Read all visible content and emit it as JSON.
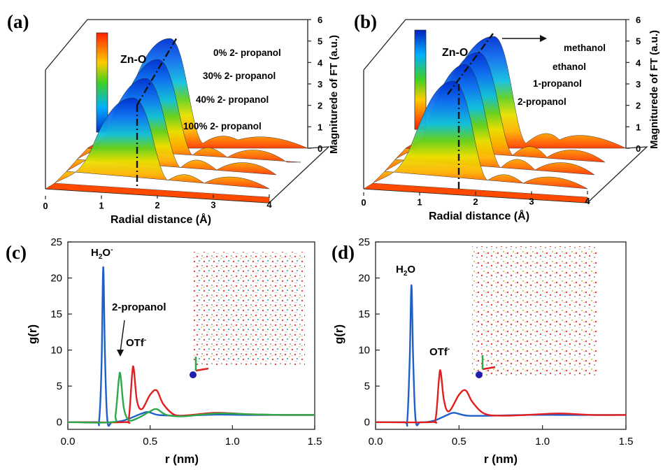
{
  "panel_labels": [
    "(a)",
    "(b)",
    "(c)",
    "(d)"
  ],
  "colors": {
    "blue": "#1f5fc8",
    "red": "#e02020",
    "green": "#2ea84a"
  },
  "chart_data": [
    {
      "panel": "(a)",
      "type": "area",
      "style": "3d-waterfall",
      "xlabel": "Radial distance (Å)",
      "ylabel": "Magniturede of FT (a.u.)",
      "xlim": [
        0,
        4
      ],
      "ylim": [
        0,
        6
      ],
      "xticks": [
        "0",
        "1",
        "2",
        "3",
        "4"
      ],
      "yticks": [
        "0",
        "1",
        "2",
        "3",
        "4",
        "5",
        "6"
      ],
      "annotation": "Zn-O",
      "series": [
        {
          "name": "100% 2- propanol",
          "peak_position": 1.62,
          "peak_height": 2.8
        },
        {
          "name": "40% 2- propanol",
          "peak_position": 1.62,
          "peak_height": 3.5
        },
        {
          "name": "30% 2- propanol",
          "peak_position": 1.62,
          "peak_height": 4.3
        },
        {
          "name": "0% 2- propanol",
          "peak_position": 1.62,
          "peak_height": 5.0
        }
      ]
    },
    {
      "panel": "(b)",
      "type": "area",
      "style": "3d-waterfall",
      "xlabel": "Radial distance (Å)",
      "ylabel": "Magniturede of FT (a.u.)",
      "xlim": [
        0,
        4
      ],
      "ylim": [
        0,
        6
      ],
      "xticks": [
        "0",
        "1",
        "2",
        "3",
        "4"
      ],
      "yticks": [
        "0",
        "1",
        "2",
        "3",
        "4",
        "5",
        "6"
      ],
      "annotation": "Zn-O",
      "series": [
        {
          "name": "2-propanol",
          "peak_position": 1.62,
          "peak_height": 3.0
        },
        {
          "name": "1-propanol",
          "peak_position": 1.62,
          "peak_height": 4.0
        },
        {
          "name": "ethanol",
          "peak_position": 1.62,
          "peak_height": 4.5
        },
        {
          "name": "methanol",
          "peak_position": 1.62,
          "peak_height": 5.1
        }
      ]
    },
    {
      "panel": "(c)",
      "type": "line",
      "xlabel": "r (nm)",
      "ylabel": "g(r)",
      "xlim": [
        0,
        1.5
      ],
      "ylim": [
        -1,
        25
      ],
      "xticks": [
        "0.0",
        "0.5",
        "1.0",
        "1.5"
      ],
      "yticks": [
        "0",
        "5",
        "10",
        "15",
        "20",
        "25"
      ],
      "annotations": [
        "H2O-",
        "2-propanol",
        "OTf-"
      ],
      "series": [
        {
          "name": "H2O",
          "color": "#1f5fc8",
          "x": [
            0.17,
            0.19,
            0.205,
            0.215,
            0.225,
            0.24,
            0.27,
            0.35,
            0.45,
            0.49,
            0.55,
            0.7,
            0.9,
            1.1,
            1.3,
            1.5
          ],
          "y": [
            0,
            0.2,
            8,
            21.5,
            10,
            0.3,
            0,
            0.3,
            1.2,
            1.4,
            1.0,
            0.9,
            1.05,
            1.0,
            1.0,
            1.0
          ]
        },
        {
          "name": "OTf",
          "color": "#e02020",
          "x": [
            0.34,
            0.37,
            0.39,
            0.4,
            0.42,
            0.45,
            0.5,
            0.54,
            0.58,
            0.65,
            0.75,
            0.9,
            1.1,
            1.3,
            1.5
          ],
          "y": [
            0,
            0.5,
            6.5,
            7.5,
            3.0,
            1.8,
            3.8,
            4.4,
            2.5,
            1.0,
            1.0,
            1.3,
            1.1,
            1.0,
            1.0
          ]
        },
        {
          "name": "2-propanol",
          "color": "#2ea84a",
          "x": [
            0.27,
            0.29,
            0.31,
            0.32,
            0.34,
            0.37,
            0.42,
            0.5,
            0.54,
            0.6,
            0.7,
            0.9,
            1.1,
            1.3,
            1.5
          ],
          "y": [
            0,
            1.0,
            6.0,
            6.5,
            2.0,
            0.3,
            0.5,
            1.5,
            1.8,
            1.0,
            0.8,
            1.2,
            1.1,
            1.0,
            1.0
          ]
        }
      ]
    },
    {
      "panel": "(d)",
      "type": "line",
      "xlabel": "r (nm)",
      "ylabel": "g(r)",
      "xlim": [
        0,
        1.5
      ],
      "ylim": [
        -1,
        25
      ],
      "xticks": [
        "0.0",
        "0.5",
        "1.0",
        "1.5"
      ],
      "yticks": [
        "0",
        "5",
        "10",
        "15",
        "20",
        "25"
      ],
      "annotations": [
        "H2O",
        "OTf-"
      ],
      "series": [
        {
          "name": "H2O",
          "color": "#1f5fc8",
          "x": [
            0.17,
            0.19,
            0.205,
            0.215,
            0.225,
            0.24,
            0.27,
            0.35,
            0.43,
            0.47,
            0.55,
            0.7,
            0.9,
            1.1,
            1.3,
            1.5
          ],
          "y": [
            0,
            0.2,
            9,
            19.0,
            9,
            0.3,
            0,
            0.2,
            1.0,
            1.3,
            0.9,
            0.9,
            1.0,
            1.0,
            1.0,
            1.0
          ]
        },
        {
          "name": "OTf",
          "color": "#e02020",
          "x": [
            0.33,
            0.36,
            0.38,
            0.39,
            0.41,
            0.44,
            0.5,
            0.54,
            0.58,
            0.65,
            0.75,
            0.9,
            1.1,
            1.3,
            1.5
          ],
          "y": [
            0,
            0.5,
            6.0,
            7.0,
            3.0,
            1.5,
            3.8,
            4.4,
            2.8,
            1.2,
            0.9,
            1.0,
            1.2,
            1.0,
            1.0
          ]
        }
      ]
    }
  ]
}
